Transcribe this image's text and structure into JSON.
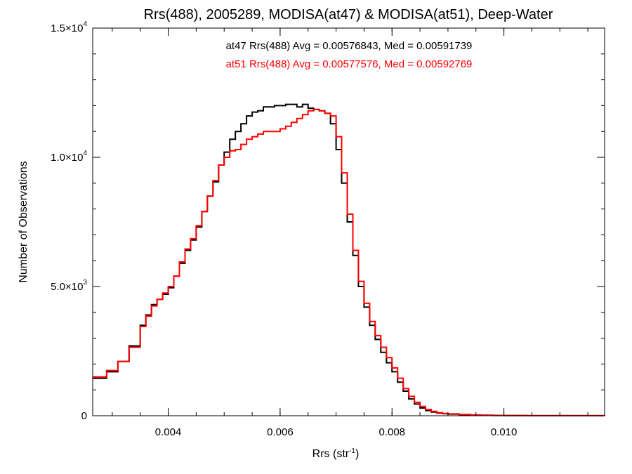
{
  "chart_data": {
    "type": "line",
    "step": true,
    "title": "Rrs(488), 2005289, MODISA(at47) & MODISA(at51), Deep-Water",
    "xlabel": "Rrs (str",
    "xlabel_sup": "-1",
    "xlabel_end": ")",
    "ylabel": "Number of Observations",
    "xlim": [
      0.00265,
      0.0118
    ],
    "ylim": [
      0,
      15000
    ],
    "x_ticks": [
      {
        "value": 0.004,
        "label": "0.004"
      },
      {
        "value": 0.006,
        "label": "0.006"
      },
      {
        "value": 0.008,
        "label": "0.008"
      },
      {
        "value": 0.01,
        "label": "0.010"
      }
    ],
    "y_ticks": [
      {
        "value": 0,
        "mant": "0",
        "exp": ""
      },
      {
        "value": 5000,
        "mant": "5.0×10",
        "exp": "3"
      },
      {
        "value": 10000,
        "mant": "1.0×10",
        "exp": "4"
      },
      {
        "value": 15000,
        "mant": "1.5×10",
        "exp": "4"
      }
    ],
    "annotations": [
      {
        "text": "at47 Rrs(488) Avg = 0.00576843, Med = 0.00591739",
        "color": "#000000"
      },
      {
        "text": "at51 Rrs(488) Avg = 0.00577576, Med = 0.00592769",
        "color": "#ff0000"
      }
    ],
    "series": [
      {
        "color": "#000000",
        "x": [
          0.00265,
          0.0029,
          0.0031,
          0.0033,
          0.0035,
          0.0036,
          0.0037,
          0.0038,
          0.0039,
          0.004,
          0.0041,
          0.0042,
          0.0043,
          0.0044,
          0.0045,
          0.0046,
          0.0047,
          0.0048,
          0.0049,
          0.005,
          0.0051,
          0.0052,
          0.0053,
          0.0054,
          0.0055,
          0.0056,
          0.0057,
          0.0058,
          0.0059,
          0.006,
          0.0061,
          0.0062,
          0.0063,
          0.0064,
          0.0065,
          0.0066,
          0.0067,
          0.0068,
          0.0069,
          0.007,
          0.0071,
          0.0072,
          0.0073,
          0.0074,
          0.0075,
          0.0076,
          0.0077,
          0.0078,
          0.0079,
          0.008,
          0.0081,
          0.0082,
          0.0083,
          0.0084,
          0.0085,
          0.0086,
          0.0087,
          0.0088,
          0.0089,
          0.009,
          0.0092,
          0.0094,
          0.0096,
          0.0098,
          0.01,
          0.0104,
          0.011,
          0.0118
        ],
        "y": [
          1450,
          1700,
          2100,
          2700,
          3500,
          3900,
          4300,
          4500,
          4700,
          4950,
          5400,
          5900,
          6400,
          6800,
          7300,
          7900,
          8500,
          9050,
          9700,
          10200,
          10700,
          11000,
          11300,
          11600,
          11750,
          11800,
          11950,
          11950,
          12000,
          12000,
          12050,
          12050,
          11950,
          12050,
          11900,
          11850,
          11800,
          11700,
          11300,
          10300,
          9000,
          7500,
          6200,
          5000,
          4200,
          3500,
          2950,
          2450,
          2050,
          1700,
          1300,
          950,
          650,
          450,
          300,
          200,
          140,
          100,
          80,
          60,
          40,
          25,
          15,
          10,
          5,
          3,
          2,
          1
        ]
      },
      {
        "color": "#ff0000",
        "x": [
          0.00265,
          0.0029,
          0.0031,
          0.0033,
          0.0035,
          0.0036,
          0.0037,
          0.0038,
          0.0039,
          0.004,
          0.0041,
          0.0042,
          0.0043,
          0.0044,
          0.0045,
          0.0046,
          0.0047,
          0.0048,
          0.0049,
          0.005,
          0.0051,
          0.0052,
          0.0053,
          0.0054,
          0.0055,
          0.0056,
          0.0057,
          0.0058,
          0.0059,
          0.006,
          0.0061,
          0.0062,
          0.0063,
          0.0064,
          0.0065,
          0.0066,
          0.0067,
          0.0068,
          0.0069,
          0.007,
          0.0071,
          0.0072,
          0.0073,
          0.0074,
          0.0075,
          0.0076,
          0.0077,
          0.0078,
          0.0079,
          0.008,
          0.0081,
          0.0082,
          0.0083,
          0.0084,
          0.0085,
          0.0086,
          0.0087,
          0.0088,
          0.0089,
          0.009,
          0.0092,
          0.0094,
          0.0096,
          0.0098,
          0.01,
          0.0104,
          0.011,
          0.0118
        ],
        "y": [
          1500,
          1750,
          2100,
          2650,
          3450,
          3850,
          4250,
          4500,
          4750,
          5000,
          5400,
          5950,
          6450,
          6850,
          7350,
          7900,
          8500,
          9100,
          9700,
          10000,
          10250,
          10300,
          10500,
          10700,
          10800,
          10900,
          11000,
          11000,
          11000,
          11100,
          11200,
          11350,
          11500,
          11650,
          11800,
          11850,
          11800,
          11700,
          11600,
          10800,
          9400,
          7800,
          6400,
          5200,
          4350,
          3650,
          3100,
          2650,
          2250,
          1850,
          1450,
          1050,
          750,
          520,
          360,
          240,
          170,
          120,
          90,
          70,
          50,
          30,
          20,
          12,
          6,
          3,
          2,
          1
        ]
      }
    ]
  }
}
